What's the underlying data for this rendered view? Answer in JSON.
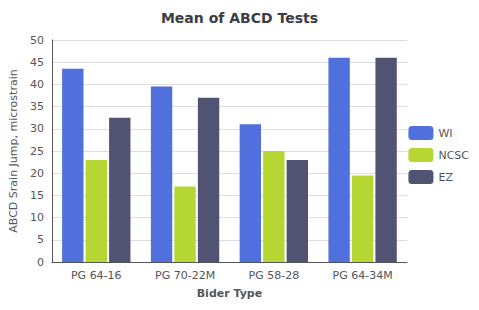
{
  "chart_data": {
    "type": "bar",
    "title": "Mean of ABCD Tests",
    "xlabel": "Bider Type",
    "ylabel": "ABCD Srain Jump, microstrain",
    "categories": [
      "PG 64-16",
      "PG 70-22M",
      "PG 58-28",
      "PG 64-34M"
    ],
    "series": [
      {
        "name": "WI",
        "values": [
          43.5,
          39.5,
          31.0,
          46.0
        ]
      },
      {
        "name": "NCSC",
        "values": [
          23.0,
          17.0,
          25.0,
          19.5
        ]
      },
      {
        "name": "EZ",
        "values": [
          32.5,
          37.0,
          23.0,
          46.0
        ]
      }
    ],
    "ylim": [
      0,
      50
    ],
    "yticks": [
      0,
      5,
      10,
      15,
      20,
      25,
      30,
      35,
      40,
      45,
      50
    ],
    "grid": true,
    "legend": "right"
  }
}
